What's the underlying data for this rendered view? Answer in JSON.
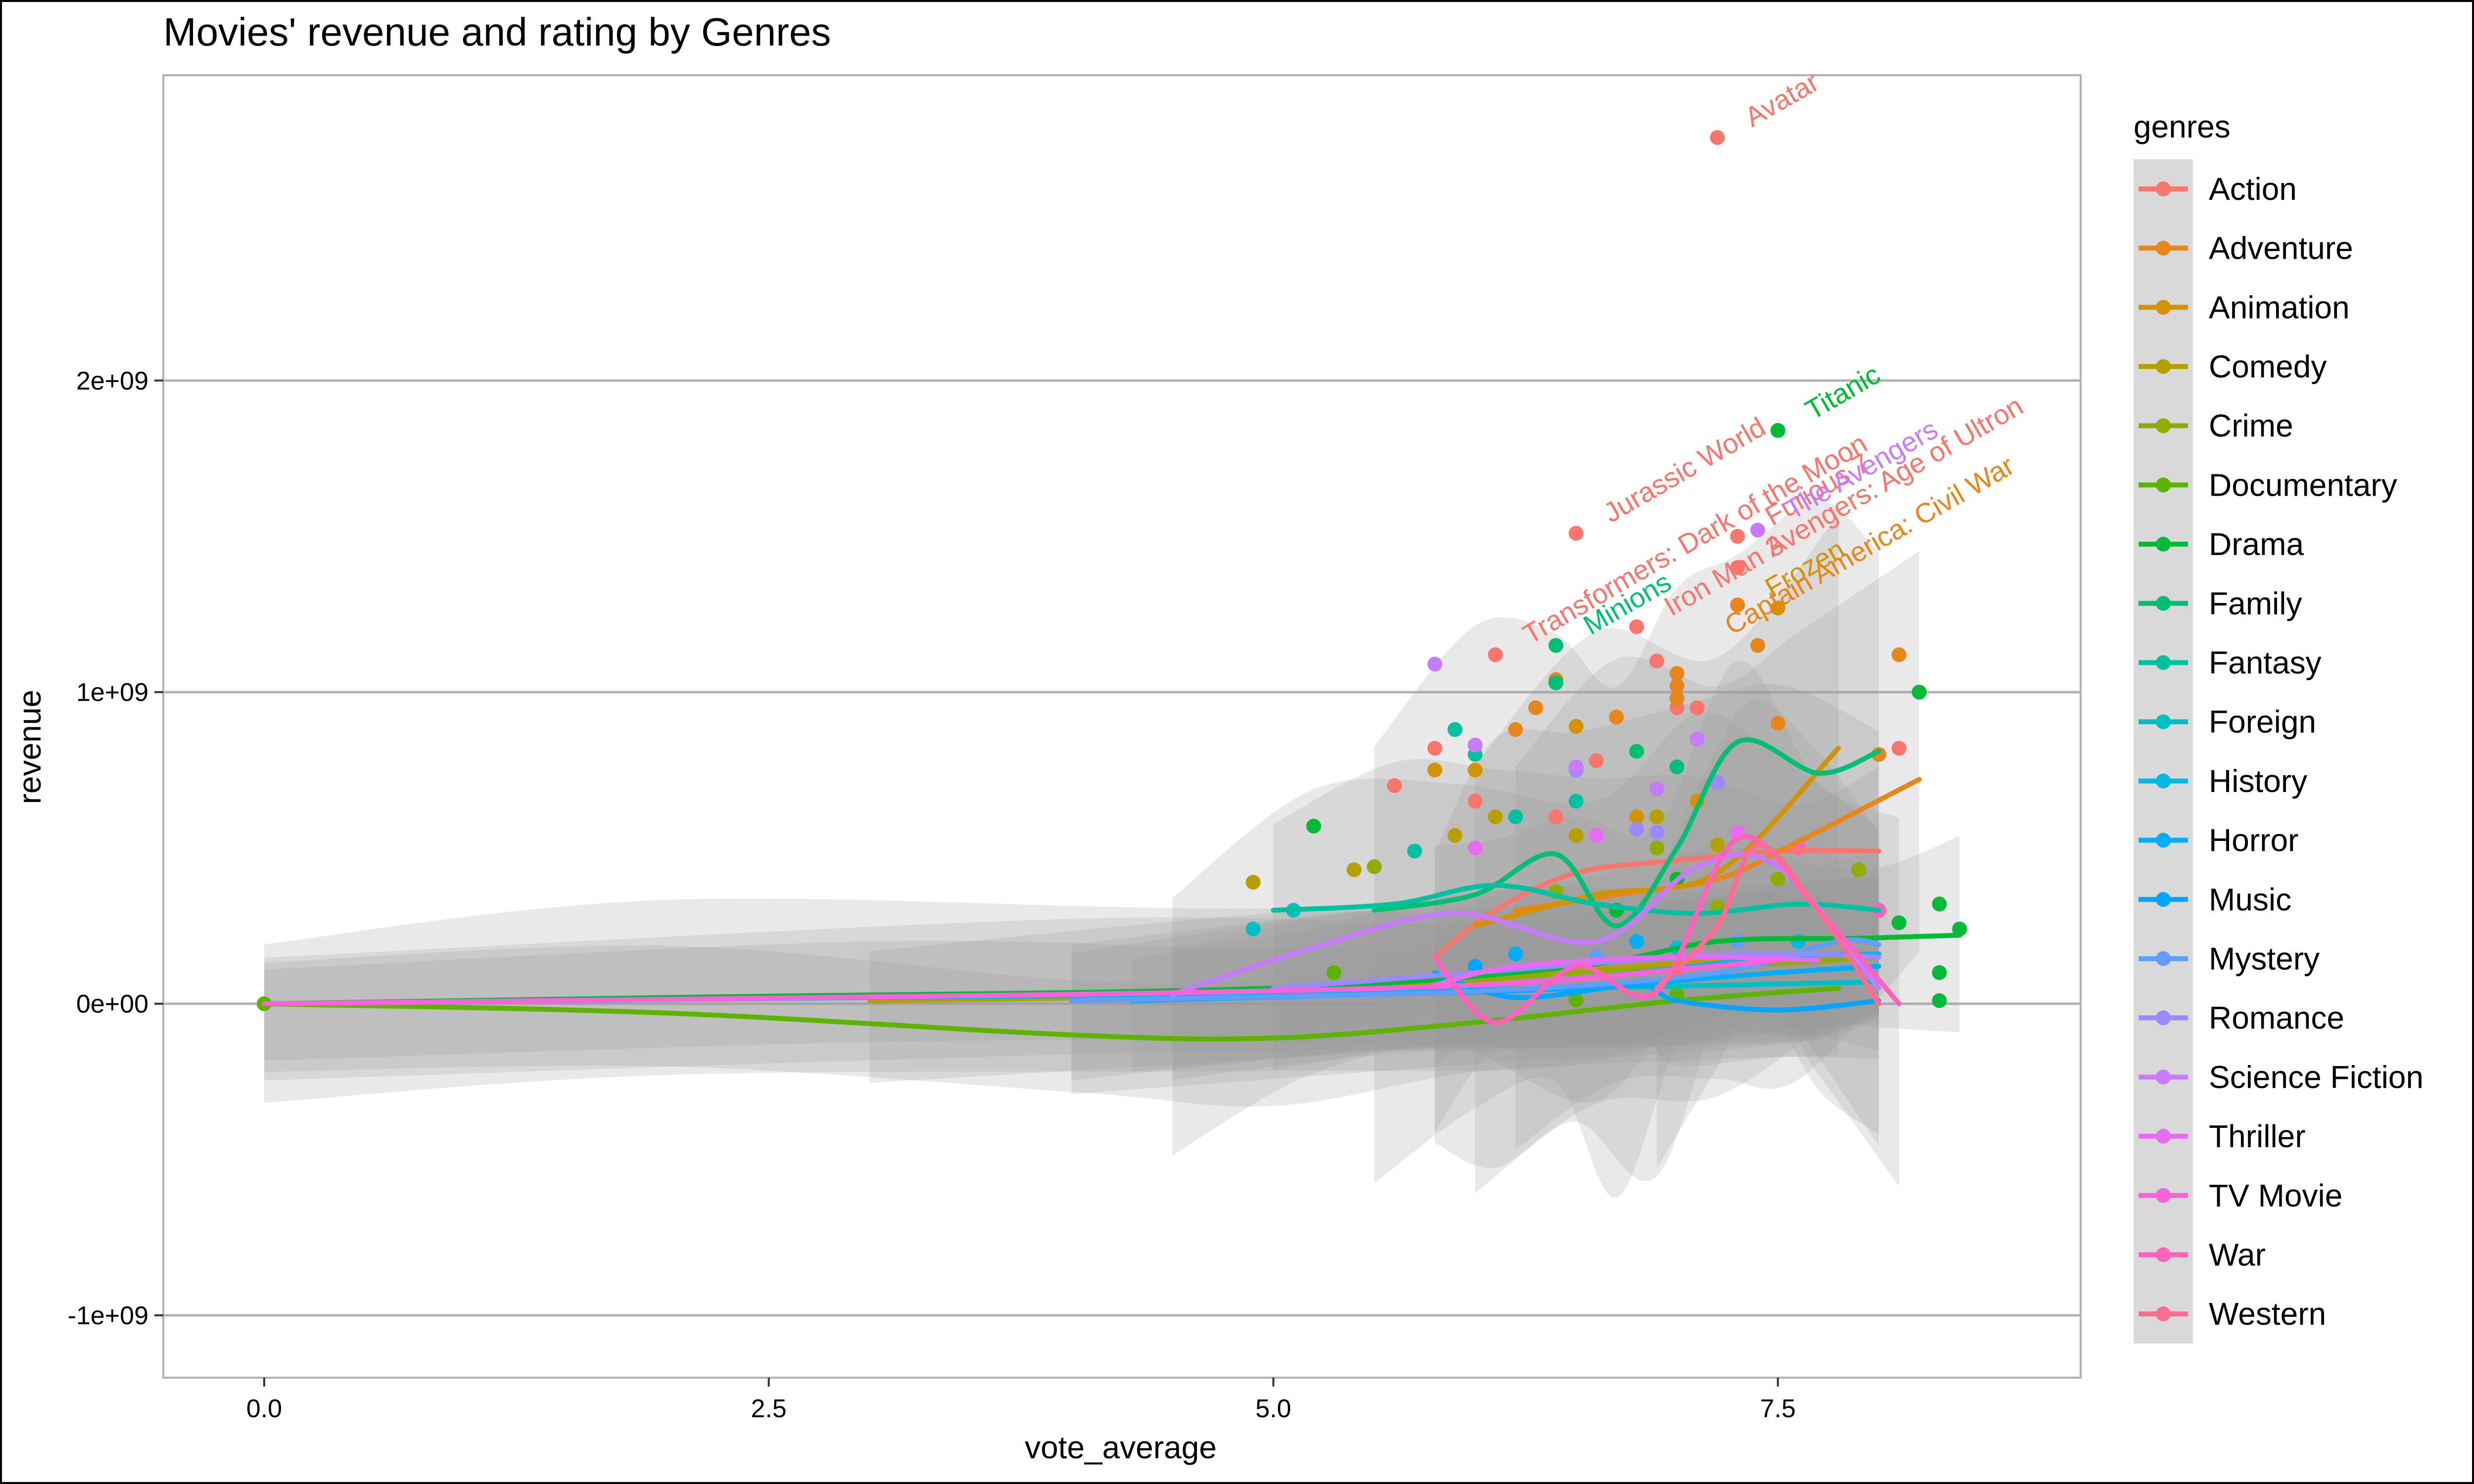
{
  "chart_data": {
    "type": "scatter",
    "title": "Movies' revenue and rating by Genres",
    "xlabel": "vote_average",
    "ylabel": "revenue",
    "xlim": [
      -0.5,
      9.0
    ],
    "ylim": [
      -1200000000.0,
      2980000000.0
    ],
    "x_ticks": [
      0.0,
      2.5,
      5.0,
      7.5
    ],
    "x_tick_labels": [
      "0.0",
      "2.5",
      "5.0",
      "7.5"
    ],
    "y_ticks": [
      -1000000000.0,
      0,
      1000000000.0,
      2000000000.0
    ],
    "y_tick_labels": [
      "-1e+09",
      "0e+00",
      "1e+09",
      "2e+09"
    ],
    "grid": true,
    "legend": {
      "title": "genres",
      "position": "right"
    },
    "series": [
      {
        "name": "Action",
        "color": "#F8766D",
        "points": [
          [
            7.2,
            2780000000.0
          ],
          [
            6.5,
            1510000000.0
          ],
          [
            6.8,
            1210000000.0
          ],
          [
            6.1,
            1120000000.0
          ],
          [
            7.3,
            1400000000.0
          ],
          [
            7.3,
            1500000000.0
          ],
          [
            6.9,
            1100000000.0
          ],
          [
            7.0,
            950000000.0
          ],
          [
            5.8,
            820000000.0
          ],
          [
            6.6,
            780000000.0
          ],
          [
            7.1,
            950000000.0
          ],
          [
            8.1,
            820000000.0
          ],
          [
            6.0,
            650000000.0
          ],
          [
            5.6,
            700000000.0
          ],
          [
            6.4,
            600000000.0
          ]
        ],
        "smooth": [
          [
            5.8,
            150000000.0
          ],
          [
            6.1,
            300000000.0
          ],
          [
            6.5,
            420000000.0
          ],
          [
            7.0,
            460000000.0
          ],
          [
            7.5,
            490000000.0
          ],
          [
            8.0,
            490000000.0
          ]
        ]
      },
      {
        "name": "Adventure",
        "color": "#E7861B",
        "points": [
          [
            7.0,
            1060000000.0
          ],
          [
            7.0,
            1020000000.0
          ],
          [
            6.4,
            1040000000.0
          ],
          [
            6.3,
            950000000.0
          ],
          [
            7.3,
            1280000000.0
          ],
          [
            7.4,
            1150000000.0
          ],
          [
            8.1,
            1120000000.0
          ],
          [
            6.7,
            920000000.0
          ],
          [
            6.2,
            880000000.0
          ],
          [
            7.0,
            980000000.0
          ],
          [
            7.5,
            900000000.0
          ],
          [
            8.0,
            800000000.0
          ]
        ],
        "smooth": [
          [
            6.2,
            300000000.0
          ],
          [
            6.7,
            350000000.0
          ],
          [
            7.2,
            400000000.0
          ],
          [
            7.6,
            520000000.0
          ],
          [
            8.2,
            720000000.0
          ]
        ]
      },
      {
        "name": "Animation",
        "color": "#D39200",
        "points": [
          [
            7.5,
            1270000000.0
          ],
          [
            6.4,
            1030000000.0
          ],
          [
            6.5,
            890000000.0
          ],
          [
            6.0,
            750000000.0
          ],
          [
            7.1,
            650000000.0
          ],
          [
            6.8,
            600000000.0
          ],
          [
            5.8,
            750000000.0
          ]
        ],
        "smooth": [
          [
            6.0,
            250000000.0
          ],
          [
            6.6,
            350000000.0
          ],
          [
            7.2,
            420000000.0
          ],
          [
            7.8,
            820000000.0
          ]
        ]
      },
      {
        "name": "Comedy",
        "color": "#B79F00",
        "points": [
          [
            5.9,
            880000000.0
          ],
          [
            6.1,
            600000000.0
          ],
          [
            5.9,
            540000000.0
          ],
          [
            6.5,
            540000000.0
          ],
          [
            7.2,
            510000000.0
          ],
          [
            4.9,
            390000000.0
          ],
          [
            5.4,
            430000000.0
          ],
          [
            6.9,
            600000000.0
          ]
        ],
        "smooth": [
          [
            3.0,
            10000000.0
          ],
          [
            5.0,
            30000000.0
          ],
          [
            6.0,
            80000000.0
          ],
          [
            7.0,
            130000000.0
          ],
          [
            8.0,
            160000000.0
          ]
        ]
      },
      {
        "name": "Crime",
        "color": "#93AA00",
        "points": [
          [
            5.5,
            440000000.0
          ],
          [
            6.4,
            360000000.0
          ],
          [
            7.2,
            310000000.0
          ],
          [
            6.9,
            500000000.0
          ],
          [
            7.5,
            400000000.0
          ],
          [
            7.9,
            430000000.0
          ]
        ],
        "smooth": [
          [
            4.0,
            10000000.0
          ],
          [
            5.5,
            50000000.0
          ],
          [
            6.5,
            100000000.0
          ],
          [
            7.5,
            130000000.0
          ],
          [
            8.0,
            150000000.0
          ]
        ]
      },
      {
        "name": "Documentary",
        "color": "#5EB300",
        "points": [
          [
            0.0,
            0
          ],
          [
            5.3,
            100000000.0
          ],
          [
            6.5,
            12000000.0
          ],
          [
            7.0,
            30000000.0
          ]
        ],
        "smooth": [
          [
            0.0,
            0
          ],
          [
            2.0,
            -30000000.0
          ],
          [
            4.0,
            -100000000.0
          ],
          [
            5.0,
            -110000000.0
          ],
          [
            6.0,
            -60000000.0
          ],
          [
            7.0,
            10000000.0
          ],
          [
            7.8,
            50000000.0
          ]
        ]
      },
      {
        "name": "Drama",
        "color": "#00BA38",
        "points": [
          [
            7.5,
            1840000000.0
          ],
          [
            8.2,
            1000000000.0
          ],
          [
            8.4,
            240000000.0
          ],
          [
            8.3,
            320000000.0
          ],
          [
            8.1,
            260000000.0
          ],
          [
            8.3,
            100000000.0
          ],
          [
            8.3,
            10000000.0
          ],
          [
            5.2,
            570000000.0
          ],
          [
            7.0,
            400000000.0
          ],
          [
            6.7,
            300000000.0
          ]
        ],
        "smooth": [
          [
            0.0,
            0
          ],
          [
            2.0,
            20000000.0
          ],
          [
            5.0,
            50000000.0
          ],
          [
            6.5,
            120000000.0
          ],
          [
            7.2,
            200000000.0
          ],
          [
            7.9,
            210000000.0
          ],
          [
            8.4,
            220000000.0
          ]
        ]
      },
      {
        "name": "Family",
        "color": "#00BF74",
        "points": [
          [
            6.4,
            1150000000.0
          ],
          [
            6.8,
            810000000.0
          ],
          [
            6.4,
            1030000000.0
          ],
          [
            7.0,
            760000000.0
          ]
        ],
        "smooth": [
          [
            5.5,
            300000000.0
          ],
          [
            6.0,
            350000000.0
          ],
          [
            6.4,
            480000000.0
          ],
          [
            6.7,
            250000000.0
          ],
          [
            7.0,
            500000000.0
          ],
          [
            7.3,
            840000000.0
          ],
          [
            7.7,
            740000000.0
          ],
          [
            8.0,
            810000000.0
          ]
        ]
      },
      {
        "name": "Fantasy",
        "color": "#00C19F",
        "points": [
          [
            5.9,
            880000000.0
          ],
          [
            6.0,
            800000000.0
          ],
          [
            5.7,
            490000000.0
          ],
          [
            6.2,
            600000000.0
          ],
          [
            6.5,
            650000000.0
          ]
        ],
        "smooth": [
          [
            5.0,
            300000000.0
          ],
          [
            5.6,
            320000000.0
          ],
          [
            6.1,
            380000000.0
          ],
          [
            6.6,
            320000000.0
          ],
          [
            7.1,
            290000000.0
          ],
          [
            7.6,
            320000000.0
          ],
          [
            8.0,
            300000000.0
          ]
        ]
      },
      {
        "name": "Foreign",
        "color": "#00BFC4",
        "points": [
          [
            4.9,
            240000000.0
          ],
          [
            5.1,
            300000000.0
          ]
        ],
        "smooth": [
          [
            0.0,
            0
          ],
          [
            3.0,
            20000000.0
          ],
          [
            5.0,
            30000000.0
          ],
          [
            6.5,
            50000000.0
          ],
          [
            8.0,
            70000000.0
          ]
        ]
      },
      {
        "name": "History",
        "color": "#00B9E3",
        "points": [
          [
            7.0,
            180000000.0
          ],
          [
            7.6,
            200000000.0
          ]
        ],
        "smooth": [
          [
            4.5,
            20000000.0
          ],
          [
            5.5,
            40000000.0
          ],
          [
            6.5,
            80000000.0
          ],
          [
            7.5,
            150000000.0
          ],
          [
            8.0,
            160000000.0
          ]
        ]
      },
      {
        "name": "Horror",
        "color": "#00ADFA",
        "points": [
          [
            6.2,
            160000000.0
          ],
          [
            6.8,
            200000000.0
          ]
        ],
        "smooth": [
          [
            4.3,
            10000000.0
          ],
          [
            5.5,
            30000000.0
          ],
          [
            6.5,
            50000000.0
          ],
          [
            7.5,
            100000000.0
          ],
          [
            8.0,
            120000000.0
          ]
        ]
      },
      {
        "name": "Music",
        "color": "#00A5FF",
        "points": [
          [
            6.0,
            120000000.0
          ],
          [
            7.1,
            140000000.0
          ]
        ],
        "smooth": [
          [
            5.8,
            100000000.0
          ],
          [
            6.2,
            20000000.0
          ],
          [
            6.8,
            60000000.0
          ],
          [
            7.0,
            10000000.0
          ],
          [
            7.5,
            -20000000.0
          ],
          [
            8.0,
            10000000.0
          ]
        ]
      },
      {
        "name": "Mystery",
        "color": "#619CFF",
        "points": [
          [
            6.6,
            150000000.0
          ],
          [
            7.3,
            200000000.0
          ]
        ],
        "smooth": [
          [
            4.0,
            10000000.0
          ],
          [
            6.0,
            40000000.0
          ],
          [
            7.2,
            100000000.0
          ],
          [
            7.8,
            200000000.0
          ],
          [
            8.0,
            190000000.0
          ]
        ]
      },
      {
        "name": "Romance",
        "color": "#9B8AFF",
        "points": [
          [
            6.5,
            750000000.0
          ],
          [
            7.2,
            710000000.0
          ],
          [
            6.9,
            550000000.0
          ],
          [
            6.8,
            560000000.0
          ]
        ],
        "smooth": [
          [
            5.0,
            50000000.0
          ],
          [
            6.0,
            100000000.0
          ],
          [
            7.0,
            150000000.0
          ],
          [
            7.6,
            160000000.0
          ],
          [
            8.0,
            150000000.0
          ]
        ]
      },
      {
        "name": "Science Fiction",
        "color": "#C77CFF",
        "points": [
          [
            7.4,
            1520000000.0
          ],
          [
            5.8,
            1090000000.0
          ],
          [
            7.1,
            850000000.0
          ],
          [
            6.5,
            760000000.0
          ],
          [
            6.0,
            830000000.0
          ],
          [
            6.9,
            690000000.0
          ]
        ],
        "smooth": [
          [
            4.5,
            30000000.0
          ],
          [
            5.2,
            180000000.0
          ],
          [
            5.9,
            290000000.0
          ],
          [
            6.6,
            200000000.0
          ],
          [
            7.1,
            440000000.0
          ],
          [
            7.5,
            440000000.0
          ],
          [
            8.0,
            50000000.0
          ]
        ]
      },
      {
        "name": "Thriller",
        "color": "#E76BF3",
        "points": [
          [
            6.6,
            540000000.0
          ],
          [
            6.0,
            500000000.0
          ],
          [
            7.3,
            550000000.0
          ]
        ],
        "smooth": [
          [
            5.8,
            60000000.0
          ],
          [
            6.2,
            120000000.0
          ],
          [
            7.0,
            150000000.0
          ],
          [
            7.7,
            140000000.0
          ]
        ]
      },
      {
        "name": "TV Movie",
        "color": "#FA62DB",
        "points": [
          [
            7.1,
            150000000.0
          ]
        ],
        "smooth": [
          [
            0.0,
            0
          ],
          [
            4.0,
            30000000.0
          ],
          [
            6.0,
            60000000.0
          ],
          [
            7.0,
            110000000.0
          ],
          [
            7.5,
            140000000.0
          ]
        ]
      },
      {
        "name": "War",
        "color": "#FF62BC",
        "points": [
          [
            7.6,
            500000000.0
          ],
          [
            8.0,
            300000000.0
          ]
        ],
        "smooth": [
          [
            5.8,
            150000000.0
          ],
          [
            6.1,
            -60000000.0
          ],
          [
            6.5,
            120000000.0
          ],
          [
            6.9,
            40000000.0
          ],
          [
            7.3,
            530000000.0
          ],
          [
            7.7,
            300000000.0
          ],
          [
            8.1,
            0
          ]
        ]
      },
      {
        "name": "Western",
        "color": "#FF6C91",
        "points": [
          [
            7.0,
            100000000.0
          ]
        ],
        "smooth": [
          [
            6.9,
            50000000.0
          ],
          [
            7.2,
            250000000.0
          ],
          [
            7.4,
            510000000.0
          ],
          [
            7.7,
            300000000.0
          ],
          [
            8.0,
            0
          ]
        ]
      }
    ],
    "annotations": [
      {
        "text": "Avatar",
        "x": 7.2,
        "y": 2780000000.0,
        "color": "#F8766D"
      },
      {
        "text": "Titanic",
        "x": 7.5,
        "y": 1840000000.0,
        "color": "#00BA38"
      },
      {
        "text": "Jurassic World",
        "x": 6.5,
        "y": 1510000000.0,
        "color": "#F8766D"
      },
      {
        "text": "Transformers: Dark of the Moon",
        "x": 6.1,
        "y": 1120000000.0,
        "color": "#F8766D"
      },
      {
        "text": "Minions",
        "x": 6.4,
        "y": 1150000000.0,
        "color": "#00BF74"
      },
      {
        "text": "Iron Man 3",
        "x": 6.8,
        "y": 1210000000.0,
        "color": "#F8766D"
      },
      {
        "text": "Furious 7",
        "x": 7.3,
        "y": 1500000000.0,
        "color": "#F8766D"
      },
      {
        "text": "The Avengers",
        "x": 7.4,
        "y": 1520000000.0,
        "color": "#C77CFF"
      },
      {
        "text": "Frozen",
        "x": 7.3,
        "y": 1270000000.0,
        "color": "#D39200"
      },
      {
        "text": "Avengers: Age of Ultron",
        "x": 7.3,
        "y": 1400000000.0,
        "color": "#F8766D"
      },
      {
        "text": "Captain America: Civil War",
        "x": 7.1,
        "y": 1150000000.0,
        "color": "#E7861B"
      }
    ],
    "ribbon_color": "#999999"
  }
}
